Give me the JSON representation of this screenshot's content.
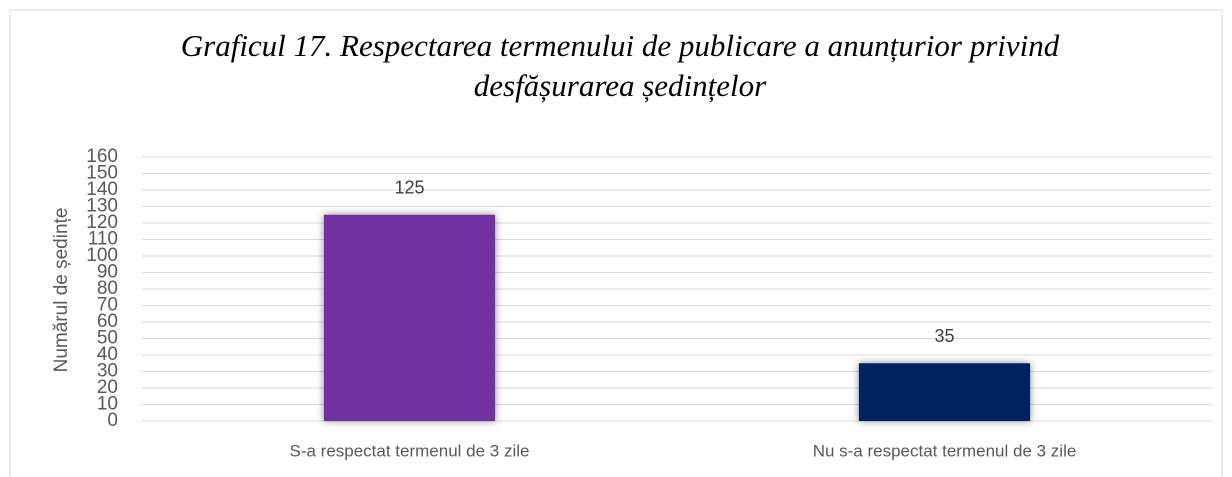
{
  "chart_data": {
    "type": "bar",
    "title": "Graficul 17. Respectarea termenului de publicare a anunțurior privind desfășurarea ședințelor",
    "y_label": "Numărul de ședințe",
    "categories": [
      "S-a respectat termenul de 3 zile",
      "Nu s-a respectat termenul de 3 zile"
    ],
    "values": [
      125,
      35
    ],
    "colors": [
      "#7030a0",
      "#002060"
    ],
    "ylim": [
      0,
      160
    ],
    "yticks": [
      0,
      10,
      20,
      30,
      40,
      50,
      60,
      70,
      80,
      90,
      100,
      110,
      120,
      130,
      140,
      150,
      160
    ],
    "grid": true
  }
}
